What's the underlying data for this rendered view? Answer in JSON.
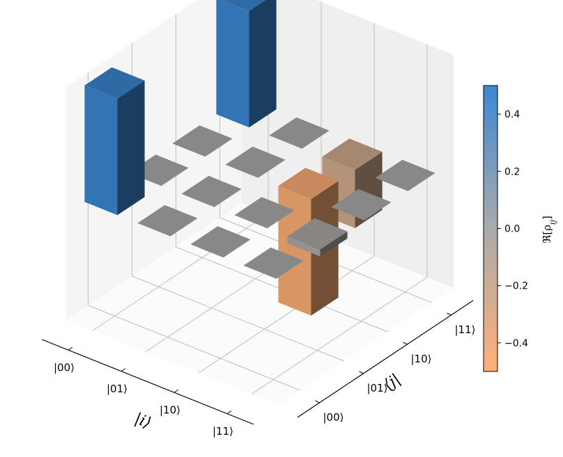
{
  "chart_data": {
    "type": "bar3d",
    "x_categories": [
      "|00⟩",
      "|01⟩",
      "|10⟩",
      "|11⟩"
    ],
    "y_categories": [
      "|00⟩",
      "|01⟩",
      "|10⟩",
      "|11⟩"
    ],
    "xlabel": "|i⟩",
    "ylabel": "⟨j|",
    "zlim": [
      -0.5,
      0.5
    ],
    "values": [
      [
        0.5,
        0.0,
        0.0,
        0.5
      ],
      [
        0.0,
        0.0,
        0.0,
        0.0
      ],
      [
        0.0,
        0.0,
        -0.5,
        -0.25
      ],
      [
        0.0,
        -0.03,
        0.0,
        0.0
      ]
    ],
    "colorbar": {
      "label": "ℜ[ρ",
      "label_sub": "ij",
      "label_end": "]",
      "ticks": [
        "0.4",
        "0.2",
        "0.0",
        "−0.2",
        "−0.4"
      ],
      "tick_values": [
        0.4,
        0.2,
        0.0,
        -0.2,
        -0.4
      ],
      "range": [
        -0.5,
        0.5
      ],
      "colors": {
        "low": "#ffb077",
        "mid": "#aaaaaa",
        "high": "#3c88d4"
      }
    },
    "pane_color": "#f2f2f2",
    "grid": true
  }
}
